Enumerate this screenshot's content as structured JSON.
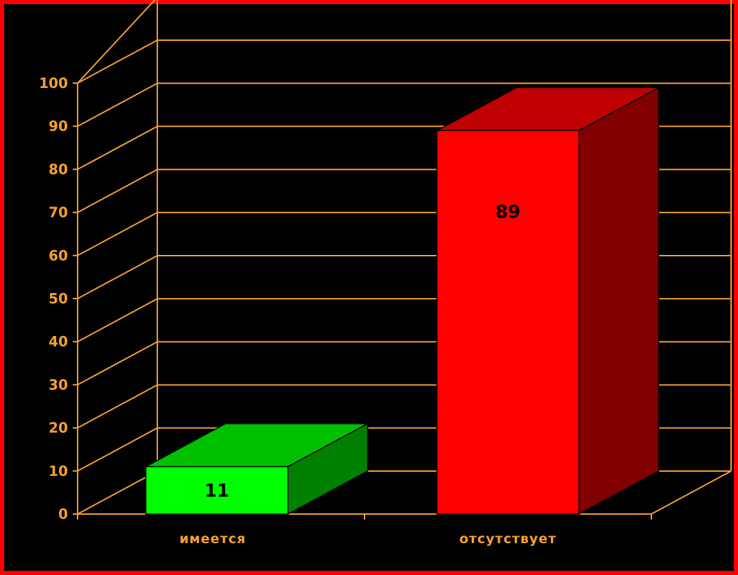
{
  "chart_data": {
    "type": "bar",
    "style": "3d-column",
    "categories": [
      "имеется",
      "отсутствует"
    ],
    "values": [
      11,
      89
    ],
    "data_labels": [
      "11",
      "89"
    ],
    "ylim": [
      0,
      100
    ],
    "yticks": [
      "0",
      "10",
      "20",
      "30",
      "40",
      "50",
      "60",
      "70",
      "80",
      "90",
      "100"
    ],
    "title": "",
    "xlabel": "",
    "ylabel": "",
    "grid": true,
    "legend": "none"
  },
  "colors": {
    "background": "#000000",
    "frame_border": "#ff0000",
    "axis_and_grid": "#f5a030",
    "tick_text": "#f5a030",
    "category_text": "#f5a030",
    "data_label_text": "#000000",
    "bars": [
      {
        "front": "#00ff00",
        "top": "#00c000",
        "side": "#008000"
      },
      {
        "front": "#ff0000",
        "top": "#c00000",
        "side": "#800000"
      }
    ]
  }
}
